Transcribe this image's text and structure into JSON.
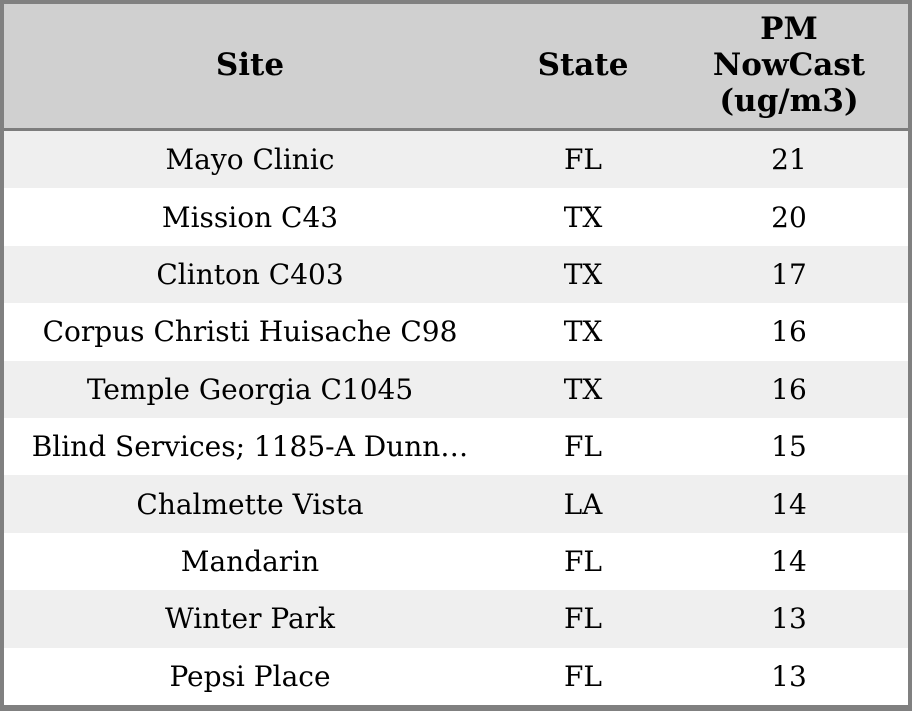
{
  "chart_data": {
    "type": "table",
    "columns": [
      {
        "key": "site",
        "label": "Site"
      },
      {
        "key": "state",
        "label": "State"
      },
      {
        "key": "pm",
        "label": "PM NowCast (ug/m3)"
      }
    ],
    "rows": [
      {
        "site": "Mayo Clinic",
        "state": "FL",
        "pm": 21
      },
      {
        "site": "Mission C43",
        "state": "TX",
        "pm": 20
      },
      {
        "site": "Clinton C403",
        "state": "TX",
        "pm": 17
      },
      {
        "site": "Corpus Christi Huisache C98",
        "state": "TX",
        "pm": 16
      },
      {
        "site": "Temple Georgia C1045",
        "state": "TX",
        "pm": 16
      },
      {
        "site": "Blind Services; 1185-A Dunn…",
        "state": "FL",
        "pm": 15
      },
      {
        "site": "Chalmette Vista",
        "state": "LA",
        "pm": 14
      },
      {
        "site": "Mandarin",
        "state": "FL",
        "pm": 14
      },
      {
        "site": "Winter Park",
        "state": "FL",
        "pm": 13
      },
      {
        "site": "Pepsi Place",
        "state": "FL",
        "pm": 13
      }
    ],
    "layout": {
      "header_lines": [
        "PM",
        "NowCast",
        "(ug/m3)"
      ],
      "row_striping": "odd rows shaded",
      "cell_alignment": "center"
    }
  },
  "colors": {
    "outer_border": "#808080",
    "header_bg": "#d0d0d0",
    "header_separator": "#7d7d7d",
    "row_alt_bg": "#efefef",
    "row_bg": "#ffffff",
    "text": "#000000"
  }
}
